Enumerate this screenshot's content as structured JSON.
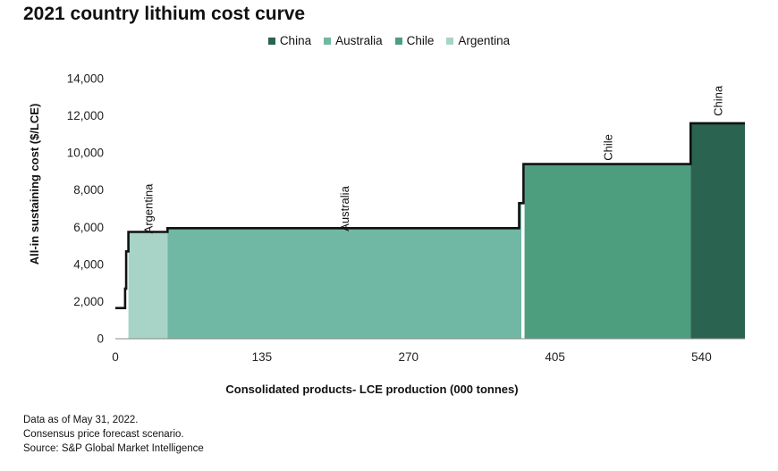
{
  "title": "2021 country lithium cost curve",
  "legend": [
    {
      "label": "China",
      "color": "#2a634f"
    },
    {
      "label": "Australia",
      "color": "#70b8a3"
    },
    {
      "label": "Chile",
      "color": "#4c9e7f"
    },
    {
      "label": "Argentina",
      "color": "#a7d4c6"
    }
  ],
  "chart_data": {
    "type": "area",
    "xlabel": "Consolidated products- LCE production (000 tonnes)",
    "ylabel": "All-in sustaining cost ($/LCE)",
    "xlim": [
      0,
      580
    ],
    "ylim": [
      0,
      14000
    ],
    "x_ticks": [
      0,
      135,
      270,
      405,
      540
    ],
    "y_ticks": [
      0,
      2000,
      4000,
      6000,
      8000,
      10000,
      12000,
      14000
    ],
    "grid": false,
    "legend_position": "top",
    "segments": [
      {
        "country": "Argentina",
        "x_start": 12,
        "x_end": 48,
        "color": "#a7d4c6",
        "label_value": 7000
      },
      {
        "country": "Australia",
        "x_start": 48,
        "x_end": 374,
        "color": "#70b8a3",
        "label_value": 7000
      },
      {
        "country": "Chile",
        "x_start": 377,
        "x_end": 530,
        "color": "#4c9e7f",
        "label_value": 10300
      },
      {
        "country": "China",
        "x_start": 530,
        "x_end": 580,
        "color": "#2a634f",
        "label_value": 12800
      }
    ],
    "cost_curve": [
      [
        0,
        1650
      ],
      [
        9,
        1650
      ],
      [
        9,
        2700
      ],
      [
        10,
        2700
      ],
      [
        10,
        4700
      ],
      [
        12,
        4700
      ],
      [
        12,
        5750
      ],
      [
        48,
        5750
      ],
      [
        48,
        5950
      ],
      [
        372,
        5950
      ],
      [
        372,
        7300
      ],
      [
        376,
        7300
      ],
      [
        376,
        9400
      ],
      [
        530,
        9400
      ],
      [
        530,
        11600
      ],
      [
        580,
        11600
      ]
    ]
  },
  "notes": [
    "Data as of May 31, 2022.",
    "Consensus price forecast scenario.",
    "Source: S&P Global Market Intelligence"
  ]
}
